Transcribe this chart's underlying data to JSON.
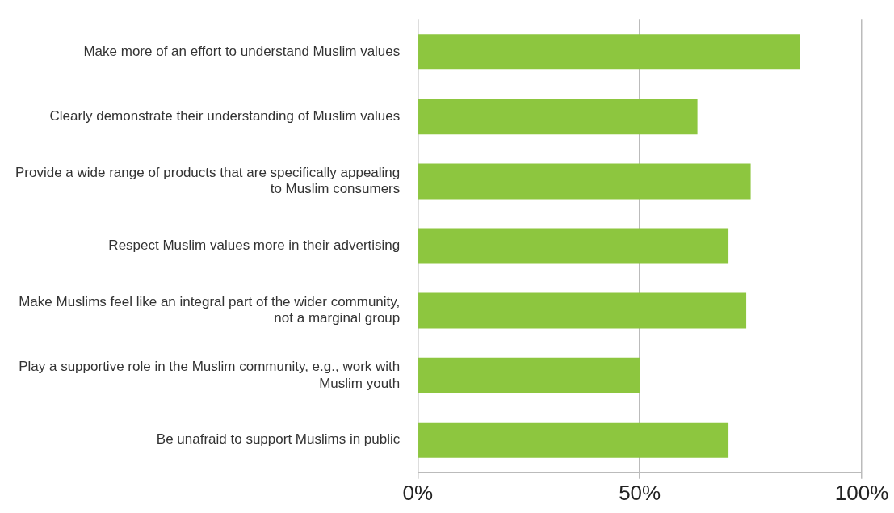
{
  "chart_data": {
    "type": "bar",
    "orientation": "horizontal",
    "categories": [
      "Make more of an effort to understand Muslim values",
      "Clearly demonstrate their understanding of Muslim values",
      "Provide a wide range of products that are specifically appealing to Muslim consumers",
      "Respect Muslim values more in their advertising",
      "Make Muslims feel like an integral part of the wider community, not a marginal group",
      "Play a supportive role in the Muslim community, e.g., work with Muslim youth",
      "Be unafraid to support Muslims in public"
    ],
    "values": [
      86,
      63,
      75,
      70,
      74,
      50,
      70
    ],
    "color": "#8dc63f",
    "xlim": [
      0,
      100
    ],
    "xticks": [
      {
        "value": 0,
        "label": "0%"
      },
      {
        "value": 50,
        "label": "50%"
      },
      {
        "value": 100,
        "label": "100%"
      }
    ],
    "grid": "x",
    "legend": false
  }
}
